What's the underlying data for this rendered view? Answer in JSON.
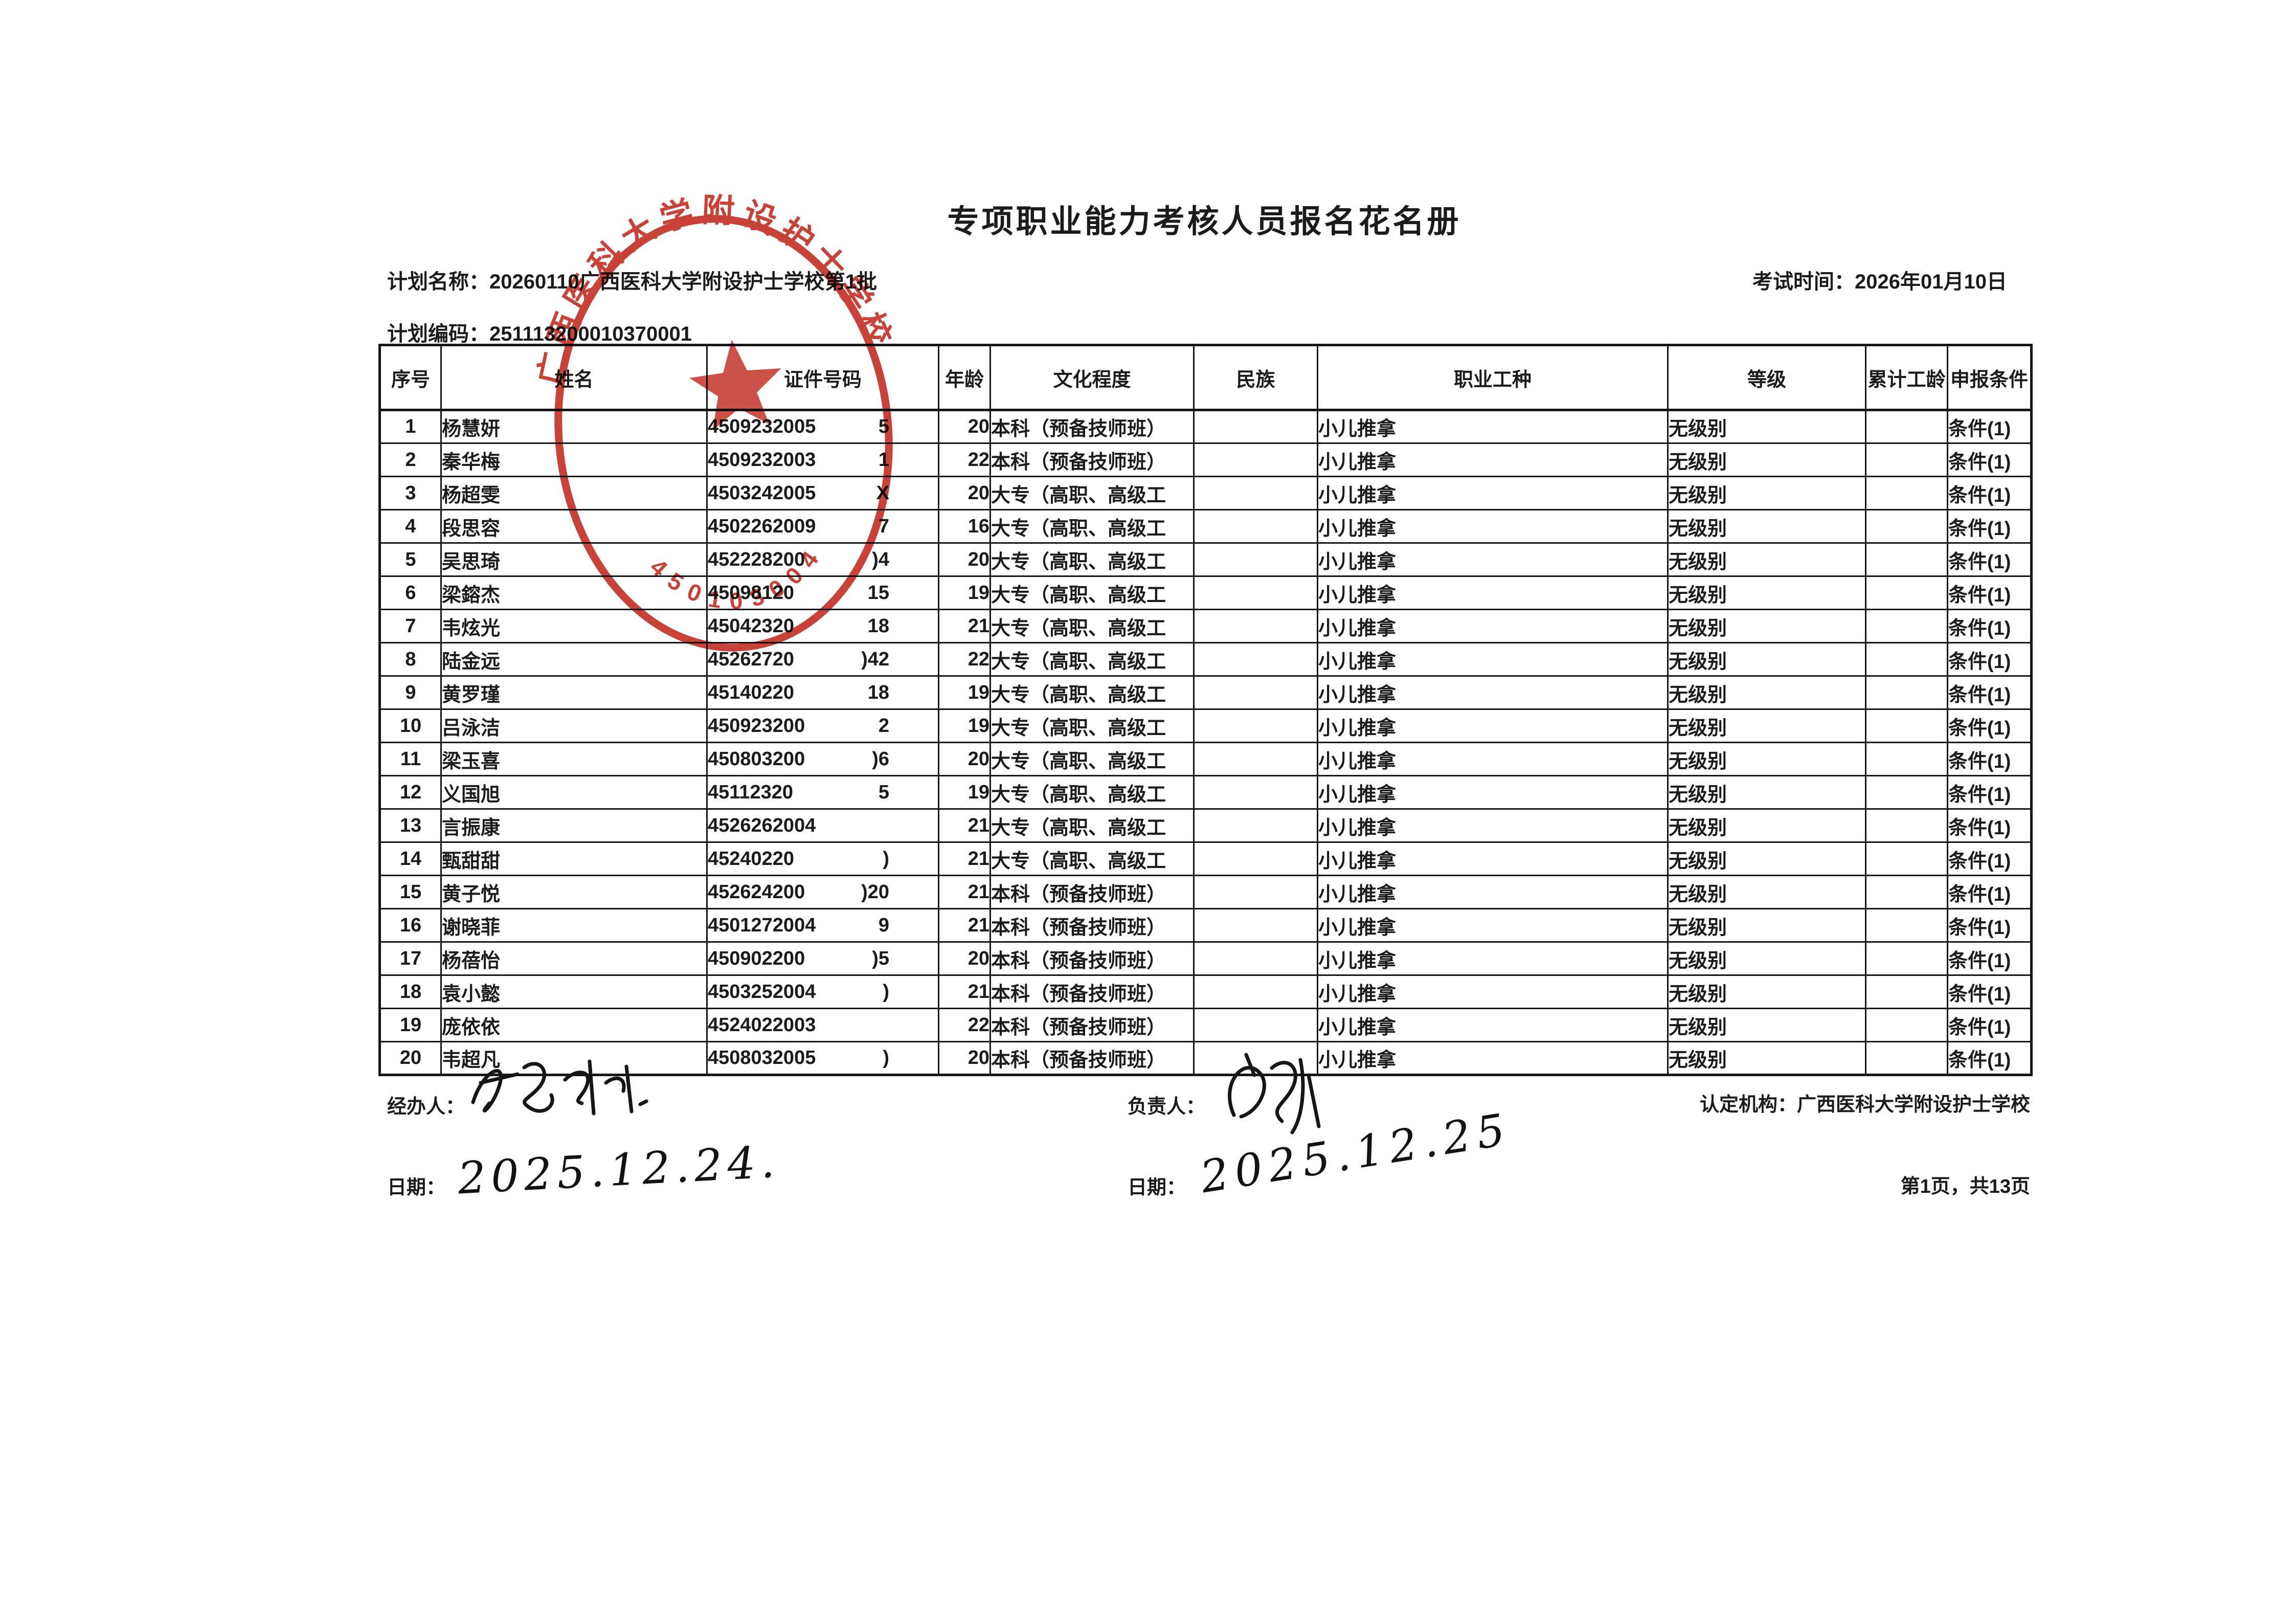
{
  "page": {
    "title": "专项职业能力考核人员报名花名册",
    "plan_name_label": "计划名称：",
    "plan_name": "20260110广西医科大学附设护士学校第1批",
    "plan_code_label": "计划编码：",
    "plan_code": "251113200010370001",
    "exam_time_label": "考试时间：",
    "exam_time": "2026年01月10日"
  },
  "table": {
    "columns": [
      "序号",
      "姓名",
      "证件号码",
      "年龄",
      "文化程度",
      "民族",
      "职业工种",
      "等级",
      "累计工龄",
      "申报条件"
    ],
    "rows": [
      {
        "no": "1",
        "name": "杨慧妍",
        "id_left": "4509232005",
        "id_right": "5",
        "age": "20",
        "edu": "本科（预备技师班）",
        "eth": "",
        "occ": "小儿推拿",
        "level": "无级别",
        "sen": "",
        "cond": "条件(1)"
      },
      {
        "no": "2",
        "name": "秦华梅",
        "id_left": "4509232003",
        "id_right": "1",
        "age": "22",
        "edu": "本科（预备技师班）",
        "eth": "",
        "occ": "小儿推拿",
        "level": "无级别",
        "sen": "",
        "cond": "条件(1)"
      },
      {
        "no": "3",
        "name": "杨超雯",
        "id_left": "4503242005",
        "id_right": "X",
        "age": "20",
        "edu": "大专（高职、高级工",
        "eth": "",
        "occ": "小儿推拿",
        "level": "无级别",
        "sen": "",
        "cond": "条件(1)"
      },
      {
        "no": "4",
        "name": "段思容",
        "id_left": "4502262009",
        "id_right": "7",
        "age": "16",
        "edu": "大专（高职、高级工",
        "eth": "",
        "occ": "小儿推拿",
        "level": "无级别",
        "sen": "",
        "cond": "条件(1)"
      },
      {
        "no": "5",
        "name": "吴思琦",
        "id_left": "452228200",
        "id_right": ")4",
        "age": "20",
        "edu": "大专（高职、高级工",
        "eth": "",
        "occ": "小儿推拿",
        "level": "无级别",
        "sen": "",
        "cond": "条件(1)"
      },
      {
        "no": "6",
        "name": "梁鎔杰",
        "id_left": "45098120",
        "id_right": "15",
        "age": "19",
        "edu": "大专（高职、高级工",
        "eth": "",
        "occ": "小儿推拿",
        "level": "无级别",
        "sen": "",
        "cond": "条件(1)"
      },
      {
        "no": "7",
        "name": "韦炫光",
        "id_left": "45042320",
        "id_right": "18",
        "age": "21",
        "edu": "大专（高职、高级工",
        "eth": "",
        "occ": "小儿推拿",
        "level": "无级别",
        "sen": "",
        "cond": "条件(1)"
      },
      {
        "no": "8",
        "name": "陆金远",
        "id_left": "45262720",
        "id_right": ")42",
        "age": "22",
        "edu": "大专（高职、高级工",
        "eth": "",
        "occ": "小儿推拿",
        "level": "无级别",
        "sen": "",
        "cond": "条件(1)"
      },
      {
        "no": "9",
        "name": "黄罗瑾",
        "id_left": "45140220",
        "id_right": "18",
        "age": "19",
        "edu": "大专（高职、高级工",
        "eth": "",
        "occ": "小儿推拿",
        "level": "无级别",
        "sen": "",
        "cond": "条件(1)"
      },
      {
        "no": "10",
        "name": "吕泳洁",
        "id_left": "450923200",
        "id_right": "2",
        "age": "19",
        "edu": "大专（高职、高级工",
        "eth": "",
        "occ": "小儿推拿",
        "level": "无级别",
        "sen": "",
        "cond": "条件(1)"
      },
      {
        "no": "11",
        "name": "梁玉喜",
        "id_left": "450803200",
        "id_right": ")6",
        "age": "20",
        "edu": "大专（高职、高级工",
        "eth": "",
        "occ": "小儿推拿",
        "level": "无级别",
        "sen": "",
        "cond": "条件(1)"
      },
      {
        "no": "12",
        "name": "义国旭",
        "id_left": "45112320",
        "id_right": "5",
        "age": "19",
        "edu": "大专（高职、高级工",
        "eth": "",
        "occ": "小儿推拿",
        "level": "无级别",
        "sen": "",
        "cond": "条件(1)"
      },
      {
        "no": "13",
        "name": "言振康",
        "id_left": "4526262004",
        "id_right": "",
        "age": "21",
        "edu": "大专（高职、高级工",
        "eth": "",
        "occ": "小儿推拿",
        "level": "无级别",
        "sen": "",
        "cond": "条件(1)"
      },
      {
        "no": "14",
        "name": "甄甜甜",
        "id_left": "45240220",
        "id_right": ")",
        "age": "21",
        "edu": "大专（高职、高级工",
        "eth": "",
        "occ": "小儿推拿",
        "level": "无级别",
        "sen": "",
        "cond": "条件(1)"
      },
      {
        "no": "15",
        "name": "黄子悦",
        "id_left": "452624200",
        "id_right": ")20",
        "age": "21",
        "edu": "本科（预备技师班）",
        "eth": "",
        "occ": "小儿推拿",
        "level": "无级别",
        "sen": "",
        "cond": "条件(1)"
      },
      {
        "no": "16",
        "name": "谢晓菲",
        "id_left": "4501272004",
        "id_right": "9",
        "age": "21",
        "edu": "本科（预备技师班）",
        "eth": "",
        "occ": "小儿推拿",
        "level": "无级别",
        "sen": "",
        "cond": "条件(1)"
      },
      {
        "no": "17",
        "name": "杨蓓怡",
        "id_left": "450902200",
        "id_right": ")5",
        "age": "20",
        "edu": "本科（预备技师班）",
        "eth": "",
        "occ": "小儿推拿",
        "level": "无级别",
        "sen": "",
        "cond": "条件(1)"
      },
      {
        "no": "18",
        "name": "袁小懿",
        "id_left": "4503252004",
        "id_right": ")",
        "age": "21",
        "edu": "本科（预备技师班）",
        "eth": "",
        "occ": "小儿推拿",
        "level": "无级别",
        "sen": "",
        "cond": "条件(1)"
      },
      {
        "no": "19",
        "name": "庞依依",
        "id_left": "4524022003",
        "id_right": "",
        "age": "22",
        "edu": "本科（预备技师班）",
        "eth": "",
        "occ": "小儿推拿",
        "level": "无级别",
        "sen": "",
        "cond": "条件(1)"
      },
      {
        "no": "20",
        "name": "韦超凡",
        "id_left": "4508032005",
        "id_right": ")",
        "age": "20",
        "edu": "本科（预备技师班）",
        "eth": "",
        "occ": "小儿推拿",
        "level": "无级别",
        "sen": "",
        "cond": "条件(1)"
      }
    ]
  },
  "stamp": {
    "ring_text": "广西医科大学附设护士学校",
    "code": "450103004",
    "color": "#c0271c"
  },
  "footer": {
    "handler_label": "经办人：",
    "handler_date_label": "日期：",
    "handler_date": "2025.12.24.",
    "manager_label": "负责人：",
    "manager_date_label": "日期：",
    "manager_date": "2025.12.25",
    "agency_label": "认定机构：",
    "agency": "广西医科大学附设护士学校",
    "page_info": "第1页，共13页"
  }
}
